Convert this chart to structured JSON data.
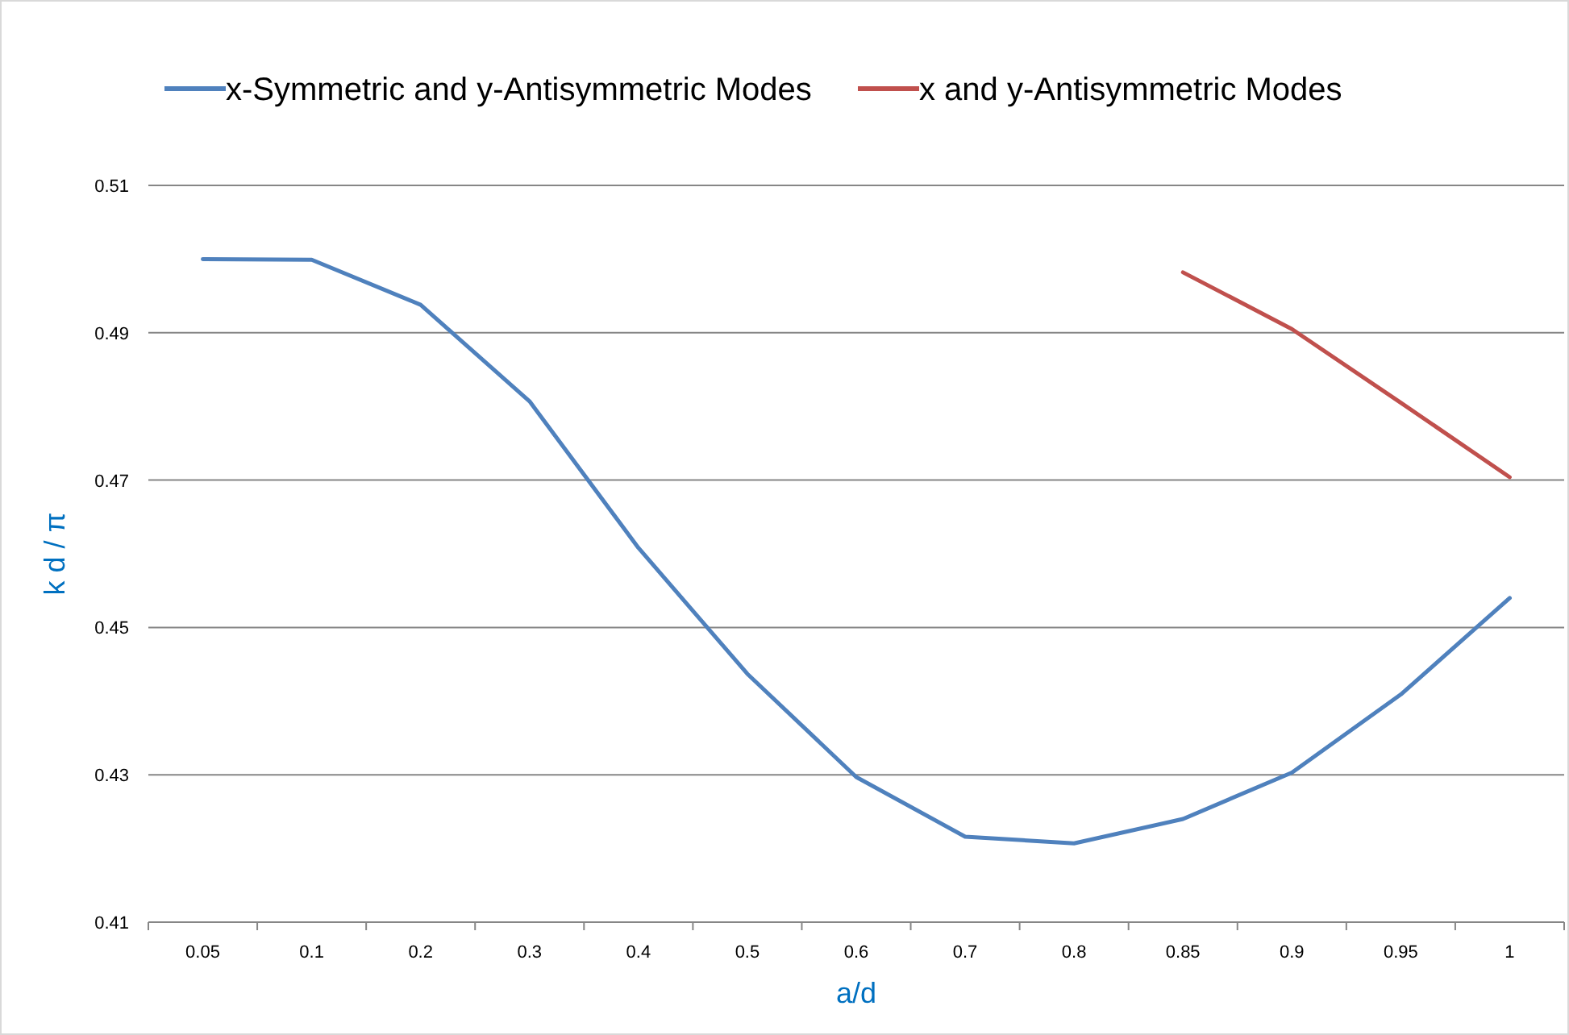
{
  "chart_data": {
    "type": "line",
    "xlabel": "a/d",
    "ylabel": "k d / π",
    "categories": [
      "0.05",
      "0.1",
      "0.2",
      "0.3",
      "0.4",
      "0.5",
      "0.6",
      "0.7",
      "0.8",
      "0.85",
      "0.9",
      "0.95",
      "1"
    ],
    "series": [
      {
        "name": "x-Symmetric and y-Antisymmetric Modes",
        "color": "#4f81bd",
        "values": [
          0.5,
          0.4999,
          0.4938,
          0.4807,
          0.4608,
          0.4437,
          0.4297,
          0.4216,
          0.4207,
          0.424,
          0.4303,
          0.4409,
          0.454
        ]
      },
      {
        "name": "x and y-Antisymmetric Modes",
        "color": "#c0504d",
        "values": [
          null,
          null,
          null,
          null,
          null,
          null,
          null,
          null,
          null,
          0.4982,
          0.4905,
          0.4805,
          0.4704
        ]
      }
    ],
    "ylim": [
      0.41,
      0.51
    ],
    "yticks": [
      0.41,
      0.43,
      0.45,
      0.47,
      0.49,
      0.51
    ],
    "grid": "y",
    "legend": "top",
    "marker": "none",
    "line_style": "solid"
  }
}
